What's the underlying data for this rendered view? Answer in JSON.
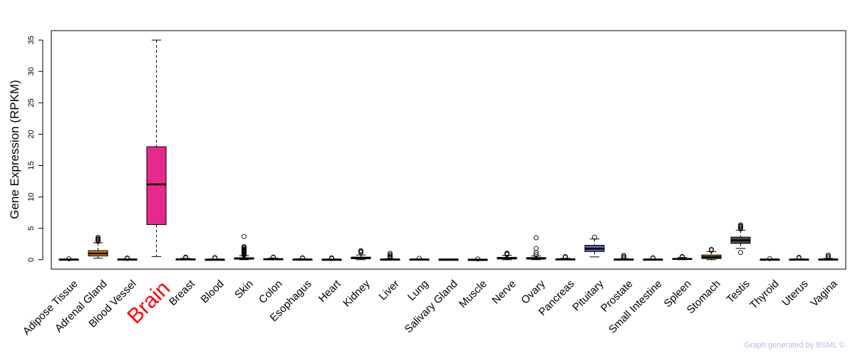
{
  "chart_data": {
    "type": "boxplot",
    "title": "",
    "xlabel": "",
    "ylabel": "Gene Expression (RPKM)",
    "ylim": [
      -1.5,
      36.5
    ],
    "yticks": [
      0,
      5,
      10,
      15,
      20,
      25,
      30,
      35
    ],
    "highlight_category": "Brain",
    "highlight_label_color": "#ff0000",
    "categories": [
      {
        "name": "Adipose Tissue",
        "min": 0.0,
        "q1": 0.02,
        "median": 0.05,
        "q3": 0.08,
        "max": 0.12,
        "outliers": [
          0.15
        ],
        "color": "#4d4d4d"
      },
      {
        "name": "Adrenal Gland",
        "min": 0.25,
        "q1": 0.6,
        "median": 1.0,
        "q3": 1.45,
        "max": 2.7,
        "outliers": [
          2.95,
          3.1,
          3.25,
          3.4,
          3.55
        ],
        "color": "#e07b1a"
      },
      {
        "name": "Blood Vessel",
        "min": 0.0,
        "q1": 0.02,
        "median": 0.05,
        "q3": 0.1,
        "max": 0.15,
        "outliers": [
          0.2,
          0.28
        ],
        "color": "#4d4d4d"
      },
      {
        "name": "Brain",
        "min": 0.5,
        "q1": 5.6,
        "median": 12.0,
        "q3": 18.0,
        "max": 35.0,
        "outliers": [],
        "color": "#e8288a"
      },
      {
        "name": "Breast",
        "min": 0.0,
        "q1": 0.03,
        "median": 0.07,
        "q3": 0.12,
        "max": 0.22,
        "outliers": [
          0.3,
          0.42
        ],
        "color": "#4d4d4d"
      },
      {
        "name": "Blood",
        "min": 0.0,
        "q1": 0.01,
        "median": 0.03,
        "q3": 0.06,
        "max": 0.12,
        "outliers": [
          0.22,
          0.35
        ],
        "color": "#4d4d4d"
      },
      {
        "name": "Skin",
        "min": 0.0,
        "q1": 0.08,
        "median": 0.18,
        "q3": 0.32,
        "max": 0.65,
        "outliers": [
          0.75,
          0.85,
          0.95,
          1.05,
          1.15,
          1.25,
          1.35,
          1.45,
          1.55,
          1.65,
          1.8,
          1.95,
          2.1,
          3.7
        ],
        "color": "#4d4d4d"
      },
      {
        "name": "Colon",
        "min": 0.0,
        "q1": 0.04,
        "median": 0.09,
        "q3": 0.15,
        "max": 0.28,
        "outliers": [
          0.35,
          0.42
        ],
        "color": "#4d4d4d"
      },
      {
        "name": "Esophagus",
        "min": 0.0,
        "q1": 0.02,
        "median": 0.05,
        "q3": 0.09,
        "max": 0.16,
        "outliers": [
          0.22,
          0.3
        ],
        "color": "#4d4d4d"
      },
      {
        "name": "Heart",
        "min": 0.0,
        "q1": 0.01,
        "median": 0.03,
        "q3": 0.06,
        "max": 0.1,
        "outliers": [
          0.18,
          0.3
        ],
        "color": "#4d4d4d"
      },
      {
        "name": "Kidney",
        "min": 0.0,
        "q1": 0.15,
        "median": 0.28,
        "q3": 0.42,
        "max": 0.75,
        "outliers": [
          1.15,
          1.3,
          1.45
        ],
        "color": "#4d4d4d"
      },
      {
        "name": "Liver",
        "min": 0.0,
        "q1": 0.02,
        "median": 0.05,
        "q3": 0.09,
        "max": 0.16,
        "outliers": [
          0.3,
          0.45,
          0.6,
          0.8,
          1.0
        ],
        "color": "#4d4d4d"
      },
      {
        "name": "Lung",
        "min": 0.0,
        "q1": 0.02,
        "median": 0.05,
        "q3": 0.09,
        "max": 0.15,
        "outliers": [
          0.22
        ],
        "color": "#4d4d4d"
      },
      {
        "name": "Salivary Gland",
        "min": 0.0,
        "q1": 0.02,
        "median": 0.04,
        "q3": 0.06,
        "max": 0.1,
        "outliers": [],
        "color": "#4d4d4d"
      },
      {
        "name": "Muscle",
        "min": 0.0,
        "q1": 0.01,
        "median": 0.02,
        "q3": 0.04,
        "max": 0.08,
        "outliers": [
          0.12
        ],
        "color": "#4d4d4d"
      },
      {
        "name": "Nerve",
        "min": 0.0,
        "q1": 0.12,
        "median": 0.22,
        "q3": 0.38,
        "max": 0.7,
        "outliers": [
          0.82,
          0.95,
          1.05
        ],
        "color": "#4d4d4d"
      },
      {
        "name": "Ovary",
        "min": 0.0,
        "q1": 0.1,
        "median": 0.2,
        "q3": 0.35,
        "max": 0.6,
        "outliers": [
          0.8,
          1.15,
          1.8,
          3.5
        ],
        "color": "#4d4d4d"
      },
      {
        "name": "Pancreas",
        "min": 0.0,
        "q1": 0.03,
        "median": 0.07,
        "q3": 0.12,
        "max": 0.22,
        "outliers": [
          0.35,
          0.5
        ],
        "color": "#4d4d4d"
      },
      {
        "name": "Pituitary",
        "min": 0.45,
        "q1": 1.3,
        "median": 1.75,
        "q3": 2.3,
        "max": 3.3,
        "outliers": [
          3.6
        ],
        "color": "#5b5bb5"
      },
      {
        "name": "Prostate",
        "min": 0.0,
        "q1": 0.02,
        "median": 0.05,
        "q3": 0.09,
        "max": 0.16,
        "outliers": [
          0.3,
          0.5,
          0.7
        ],
        "color": "#4d4d4d"
      },
      {
        "name": "Small Intestine",
        "min": 0.0,
        "q1": 0.02,
        "median": 0.04,
        "q3": 0.08,
        "max": 0.14,
        "outliers": [
          0.22,
          0.3
        ],
        "color": "#4d4d4d"
      },
      {
        "name": "Spleen",
        "min": 0.0,
        "q1": 0.07,
        "median": 0.13,
        "q3": 0.2,
        "max": 0.35,
        "outliers": [
          0.42,
          0.5
        ],
        "color": "#4d4d4d"
      },
      {
        "name": "Stomach",
        "min": 0.0,
        "q1": 0.18,
        "median": 0.42,
        "q3": 0.75,
        "max": 1.3,
        "outliers": [
          1.5,
          1.65
        ],
        "color": "#a07028"
      },
      {
        "name": "Testis",
        "min": 1.8,
        "q1": 2.6,
        "median": 3.1,
        "q3": 3.6,
        "max": 4.7,
        "outliers": [
          1.15,
          4.9,
          5.1,
          5.25,
          5.4,
          5.55
        ],
        "color": "#4d4d4d"
      },
      {
        "name": "Thyroid",
        "min": 0.0,
        "q1": 0.02,
        "median": 0.04,
        "q3": 0.07,
        "max": 0.12,
        "outliers": [
          0.18
        ],
        "color": "#4d4d4d"
      },
      {
        "name": "Uterus",
        "min": 0.0,
        "q1": 0.02,
        "median": 0.04,
        "q3": 0.08,
        "max": 0.15,
        "outliers": [
          0.25,
          0.38
        ],
        "color": "#4d4d4d"
      },
      {
        "name": "Vagina",
        "min": 0.0,
        "q1": 0.02,
        "median": 0.05,
        "q3": 0.1,
        "max": 0.2,
        "outliers": [
          0.35,
          0.55,
          0.75
        ],
        "color": "#4d4d4d"
      }
    ]
  },
  "footer": {
    "credit": "Graph generated by BSML ©"
  }
}
